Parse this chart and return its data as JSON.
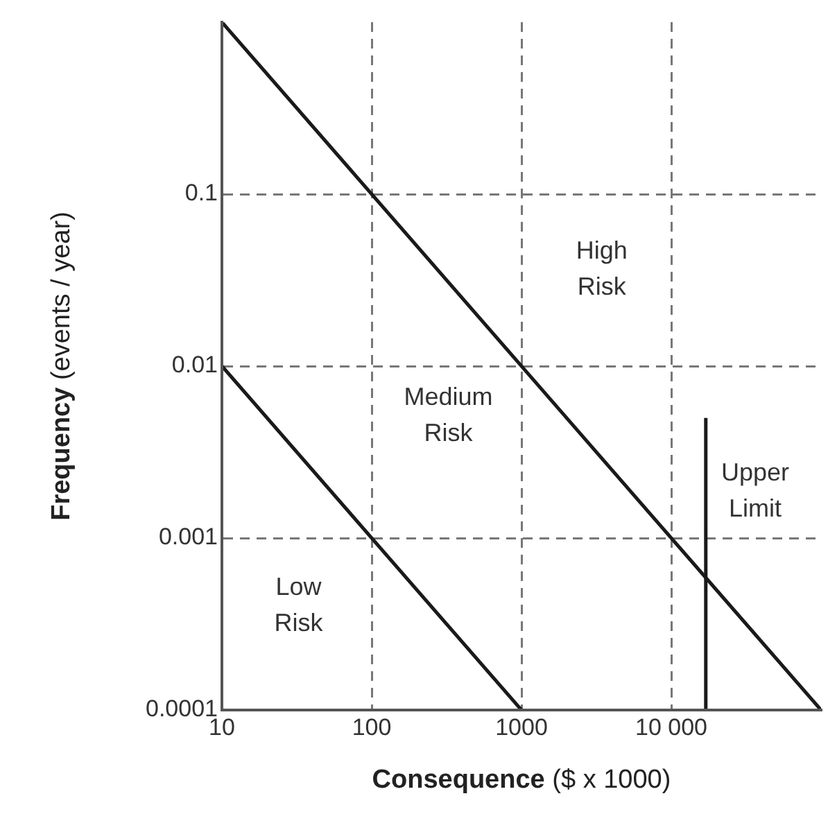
{
  "chart_data": {
    "type": "line",
    "xlabel": "Consequence ($ x 1000)",
    "ylabel": "Frequency (events / year)",
    "log": "xy",
    "xlim": [
      10,
      100000
    ],
    "ylim": [
      0.0001,
      1
    ],
    "xticks": [
      10,
      100,
      1000,
      {
        "value": 10000,
        "label": "10 000"
      }
    ],
    "yticks": [
      0.0001,
      0.001,
      0.01,
      0.1
    ],
    "grid": true,
    "legend": false,
    "marker": "none",
    "line_style": "solid",
    "series": [
      {
        "color": "#1a1a1a",
        "x": [
          10,
          100000
        ],
        "values": [
          1,
          0.0001
        ]
      },
      {
        "color": "#1a1a1a",
        "x": [
          10,
          1000
        ],
        "values": [
          0.01,
          0.0001
        ]
      },
      {
        "color": "#1a1a1a",
        "x": [
          17000,
          17000
        ],
        "values": [
          0.0001,
          0.005
        ]
      }
    ],
    "annotations": [
      "High Risk",
      "Medium Risk",
      "Low Risk",
      "Upper Limit"
    ]
  }
}
